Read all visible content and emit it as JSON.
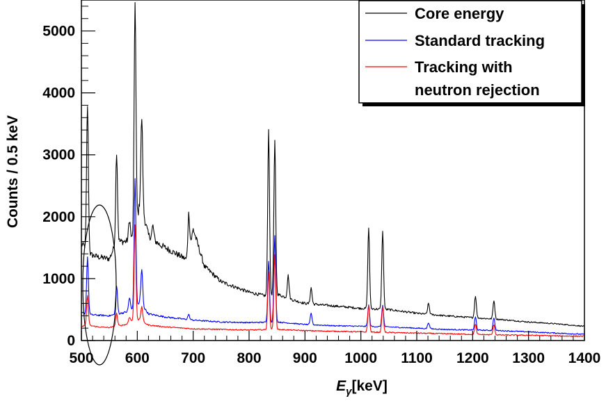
{
  "chart_data": {
    "type": "line",
    "title": "",
    "xlabel": "E_γ[keV]",
    "xlabel_main": "E",
    "xlabel_sub": "γ",
    "xlabel_unit": "[keV]",
    "ylabel": "Counts / 0.5 keV",
    "xlim": [
      500,
      1400
    ],
    "ylim": [
      0,
      5500
    ],
    "x_ticks": [
      500,
      600,
      700,
      800,
      900,
      1000,
      1100,
      1200,
      1300,
      1400
    ],
    "y_ticks": [
      0,
      1000,
      2000,
      3000,
      4000,
      5000
    ],
    "grid": false,
    "legend_position": "top-right",
    "annotation": "ellipse around ~511 keV region",
    "series": [
      {
        "name": "Core energy",
        "color": "#000000",
        "background": [
          [
            500,
            1550
          ],
          [
            510,
            1500
          ],
          [
            512,
            1400
          ],
          [
            530,
            1350
          ],
          [
            550,
            1320
          ],
          [
            563,
            1600
          ],
          [
            580,
            1600
          ],
          [
            593,
            1650
          ],
          [
            600,
            2000
          ],
          [
            606,
            2250
          ],
          [
            612,
            2000
          ],
          [
            620,
            1700
          ],
          [
            640,
            1550
          ],
          [
            660,
            1450
          ],
          [
            680,
            1350
          ],
          [
            690,
            1300
          ],
          [
            700,
            1800
          ],
          [
            720,
            1200
          ],
          [
            750,
            950
          ],
          [
            800,
            780
          ],
          [
            830,
            720
          ],
          [
            850,
            750
          ],
          [
            880,
            650
          ],
          [
            900,
            600
          ],
          [
            950,
            560
          ],
          [
            1000,
            520
          ],
          [
            1050,
            500
          ],
          [
            1100,
            440
          ],
          [
            1150,
            400
          ],
          [
            1200,
            370
          ],
          [
            1250,
            340
          ],
          [
            1300,
            300
          ],
          [
            1350,
            270
          ],
          [
            1400,
            230
          ]
        ],
        "peaks": [
          [
            511,
            3800
          ],
          [
            563,
            3050
          ],
          [
            586,
            1950
          ],
          [
            596,
            5500
          ],
          [
            608,
            3600
          ],
          [
            628,
            1850
          ],
          [
            692,
            2050
          ],
          [
            835,
            3400
          ],
          [
            846,
            3220
          ],
          [
            870,
            1050
          ],
          [
            911,
            850
          ],
          [
            1014,
            1820
          ],
          [
            1039,
            1760
          ],
          [
            1121,
            600
          ],
          [
            1205,
            720
          ],
          [
            1238,
            650
          ]
        ]
      },
      {
        "name": "Standard tracking",
        "color": "#0000ff",
        "background": [
          [
            500,
            450
          ],
          [
            510,
            420
          ],
          [
            530,
            410
          ],
          [
            550,
            400
          ],
          [
            560,
            420
          ],
          [
            580,
            460
          ],
          [
            596,
            520
          ],
          [
            605,
            620
          ],
          [
            620,
            430
          ],
          [
            650,
            380
          ],
          [
            700,
            330
          ],
          [
            750,
            300
          ],
          [
            800,
            290
          ],
          [
            850,
            300
          ],
          [
            900,
            260
          ],
          [
            950,
            240
          ],
          [
            1000,
            230
          ],
          [
            1050,
            220
          ],
          [
            1100,
            200
          ],
          [
            1150,
            180
          ],
          [
            1200,
            170
          ],
          [
            1250,
            160
          ],
          [
            1300,
            140
          ],
          [
            1350,
            120
          ],
          [
            1400,
            100
          ]
        ],
        "peaks": [
          [
            511,
            1350
          ],
          [
            563,
            880
          ],
          [
            586,
            690
          ],
          [
            596,
            2600
          ],
          [
            608,
            1150
          ],
          [
            692,
            420
          ],
          [
            835,
            1290
          ],
          [
            846,
            1690
          ],
          [
            911,
            440
          ],
          [
            1014,
            570
          ],
          [
            1039,
            570
          ],
          [
            1121,
            290
          ],
          [
            1205,
            380
          ],
          [
            1238,
            370
          ]
        ]
      },
      {
        "name": "Tracking with\nneutron rejection",
        "color": "#ff0000",
        "background": [
          [
            500,
            230
          ],
          [
            510,
            250
          ],
          [
            530,
            220
          ],
          [
            550,
            210
          ],
          [
            580,
            260
          ],
          [
            596,
            350
          ],
          [
            605,
            330
          ],
          [
            620,
            250
          ],
          [
            650,
            220
          ],
          [
            700,
            190
          ],
          [
            750,
            180
          ],
          [
            800,
            170
          ],
          [
            850,
            180
          ],
          [
            900,
            160
          ],
          [
            950,
            150
          ],
          [
            1000,
            140
          ],
          [
            1050,
            130
          ],
          [
            1100,
            120
          ],
          [
            1150,
            110
          ],
          [
            1200,
            100
          ],
          [
            1250,
            90
          ],
          [
            1300,
            85
          ],
          [
            1350,
            75
          ],
          [
            1400,
            70
          ]
        ],
        "peaks": [
          [
            511,
            720
          ],
          [
            563,
            440
          ],
          [
            586,
            380
          ],
          [
            596,
            1880
          ],
          [
            608,
            550
          ],
          [
            835,
            1100
          ],
          [
            846,
            1380
          ],
          [
            1014,
            570
          ],
          [
            1039,
            540
          ],
          [
            1205,
            260
          ],
          [
            1238,
            260
          ]
        ]
      }
    ]
  }
}
